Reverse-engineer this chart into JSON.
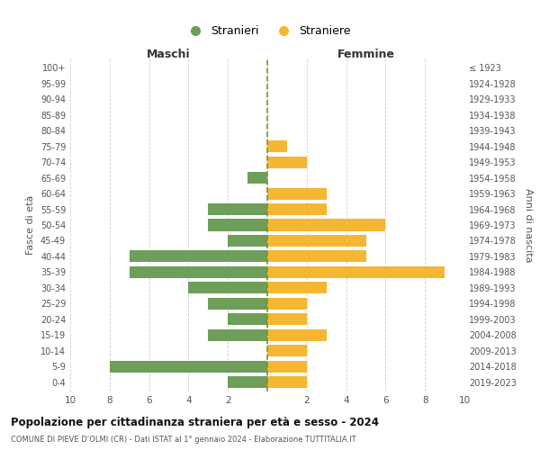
{
  "age_groups": [
    "0-4",
    "5-9",
    "10-14",
    "15-19",
    "20-24",
    "25-29",
    "30-34",
    "35-39",
    "40-44",
    "45-49",
    "50-54",
    "55-59",
    "60-64",
    "65-69",
    "70-74",
    "75-79",
    "80-84",
    "85-89",
    "90-94",
    "95-99",
    "100+"
  ],
  "birth_years": [
    "2019-2023",
    "2014-2018",
    "2009-2013",
    "2004-2008",
    "1999-2003",
    "1994-1998",
    "1989-1993",
    "1984-1988",
    "1979-1983",
    "1974-1978",
    "1969-1973",
    "1964-1968",
    "1959-1963",
    "1954-1958",
    "1949-1953",
    "1944-1948",
    "1939-1943",
    "1934-1938",
    "1929-1933",
    "1924-1928",
    "≤ 1923"
  ],
  "males": [
    2,
    8,
    0,
    3,
    2,
    3,
    4,
    7,
    7,
    2,
    3,
    3,
    0,
    1,
    0,
    0,
    0,
    0,
    0,
    0,
    0
  ],
  "females": [
    2,
    2,
    2,
    3,
    2,
    2,
    3,
    9,
    5,
    5,
    6,
    3,
    3,
    0,
    2,
    1,
    0,
    0,
    0,
    0,
    0
  ],
  "male_color": "#6d9e5a",
  "female_color": "#f5b731",
  "male_label": "Stranieri",
  "female_label": "Straniere",
  "title": "Popolazione per cittadinanza straniera per età e sesso - 2024",
  "subtitle": "COMUNE DI PIEVE D’OLMI (CR) - Dati ISTAT al 1° gennaio 2024 - Elaborazione TUTTITALIA.IT",
  "left_header": "Maschi",
  "right_header": "Femmine",
  "y_left_label": "Fasce di età",
  "y_right_label": "Anni di nascita",
  "xlim": 10,
  "background_color": "#ffffff",
  "grid_color": "#d0d0d0",
  "bar_height": 0.75,
  "dashed_line_color": "#8b8b2a"
}
